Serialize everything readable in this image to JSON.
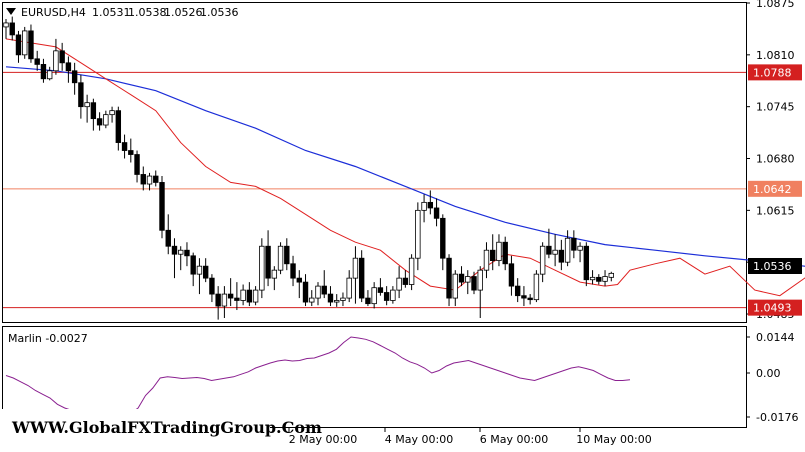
{
  "chart_data": {
    "type": "candlestick",
    "symbol_label": "EURUSD,H4",
    "ohlc_header": [
      "1.0531",
      "1.0538",
      "1.0526",
      "1.0536"
    ],
    "price_axis": {
      "min": 1.0475,
      "max": 1.0875,
      "ticks": [
        "1.0875",
        "1.0810",
        "1.0745",
        "1.0680",
        "1.0615",
        "1.0550",
        "1.0485"
      ]
    },
    "time_labels": [
      "2 May 00:00",
      "4 May 00:00",
      "6 May 00:00",
      "10 May 00:00"
    ],
    "levels": [
      {
        "value": 1.0788,
        "label": "1.0788",
        "color": "#d42020"
      },
      {
        "value": 1.0642,
        "label": "1.0642",
        "color": "#f08060"
      },
      {
        "value": 1.0493,
        "label": "1.0493",
        "color": "#d42020"
      }
    ],
    "current_price": "1.0536",
    "candles": [
      [
        1.0845,
        1.0855,
        1.083,
        1.085
      ],
      [
        1.085,
        1.0858,
        1.0828,
        1.0835
      ],
      [
        1.0835,
        1.084,
        1.08,
        1.081
      ],
      [
        1.081,
        1.0845,
        1.0805,
        1.084
      ],
      [
        1.084,
        1.0848,
        1.08,
        1.0805
      ],
      [
        1.0805,
        1.0815,
        1.079,
        1.0798
      ],
      [
        1.0798,
        1.0805,
        1.0775,
        1.078
      ],
      [
        1.078,
        1.0795,
        1.0778,
        1.079
      ],
      [
        1.079,
        1.083,
        1.0785,
        1.0815
      ],
      [
        1.0815,
        1.0825,
        1.079,
        1.08
      ],
      [
        1.08,
        1.0808,
        1.0775,
        1.079
      ],
      [
        1.079,
        1.08,
        1.076,
        1.0775
      ],
      [
        1.0775,
        1.0785,
        1.073,
        1.0745
      ],
      [
        1.0745,
        1.076,
        1.0725,
        1.075
      ],
      [
        1.075,
        1.0755,
        1.0715,
        1.073
      ],
      [
        1.073,
        1.0738,
        1.0715,
        1.0722
      ],
      [
        1.0722,
        1.074,
        1.0718,
        1.0735
      ],
      [
        1.0735,
        1.0745,
        1.0725,
        1.074
      ],
      [
        1.074,
        1.0745,
        1.069,
        1.07
      ],
      [
        1.07,
        1.071,
        1.068,
        1.069
      ],
      [
        1.069,
        1.0705,
        1.0675,
        1.0685
      ],
      [
        1.0685,
        1.069,
        1.065,
        1.066
      ],
      [
        1.066,
        1.067,
        1.064,
        1.0648
      ],
      [
        1.0648,
        1.0662,
        1.064,
        1.0658
      ],
      [
        1.0658,
        1.0665,
        1.0645,
        1.065
      ],
      [
        1.065,
        1.0658,
        1.058,
        1.059
      ],
      [
        1.059,
        1.061,
        1.056,
        1.057
      ],
      [
        1.057,
        1.058,
        1.053,
        1.056
      ],
      [
        1.056,
        1.057,
        1.054,
        1.0565
      ],
      [
        1.0565,
        1.0575,
        1.0545,
        1.0558
      ],
      [
        1.0558,
        1.0562,
        1.052,
        1.0535
      ],
      [
        1.0535,
        1.0555,
        1.051,
        1.0545
      ],
      [
        1.0545,
        1.0555,
        1.0525,
        1.053
      ],
      [
        1.053,
        1.0535,
        1.05,
        1.051
      ],
      [
        1.051,
        1.052,
        1.0478,
        1.0495
      ],
      [
        1.0495,
        1.052,
        1.048,
        1.051
      ],
      [
        1.051,
        1.053,
        1.0495,
        1.0505
      ],
      [
        1.0505,
        1.0525,
        1.049,
        1.0502
      ],
      [
        1.0502,
        1.0522,
        1.0496,
        1.0515
      ],
      [
        1.0515,
        1.0525,
        1.0495,
        1.05
      ],
      [
        1.05,
        1.052,
        1.0496,
        1.0515
      ],
      [
        1.0515,
        1.058,
        1.0505,
        1.057
      ],
      [
        1.057,
        1.059,
        1.052,
        1.053
      ],
      [
        1.053,
        1.0545,
        1.0515,
        1.054
      ],
      [
        1.054,
        1.0575,
        1.0535,
        1.057
      ],
      [
        1.057,
        1.058,
        1.054,
        1.0548
      ],
      [
        1.0548,
        1.0558,
        1.052,
        1.053
      ],
      [
        1.053,
        1.054,
        1.0505,
        1.0525
      ],
      [
        1.0525,
        1.0535,
        1.0495,
        1.05
      ],
      [
        1.05,
        1.0515,
        1.0495,
        1.0505
      ],
      [
        1.0505,
        1.0525,
        1.0496,
        1.052
      ],
      [
        1.052,
        1.054,
        1.0505,
        1.051
      ],
      [
        1.051,
        1.052,
        1.0495,
        1.05
      ],
      [
        1.05,
        1.051,
        1.0494,
        1.0502
      ],
      [
        1.0502,
        1.0512,
        1.0495,
        1.0505
      ],
      [
        1.0505,
        1.054,
        1.05,
        1.053
      ],
      [
        1.053,
        1.057,
        1.0498,
        1.0555
      ],
      [
        1.0555,
        1.0565,
        1.05,
        1.0505
      ],
      [
        1.0505,
        1.0515,
        1.0495,
        1.0498
      ],
      [
        1.0498,
        1.0525,
        1.0492,
        1.0518
      ],
      [
        1.0518,
        1.053,
        1.0508,
        1.0512
      ],
      [
        1.0512,
        1.052,
        1.0496,
        1.0502
      ],
      [
        1.0502,
        1.052,
        1.0498,
        1.0515
      ],
      [
        1.0515,
        1.0545,
        1.0505,
        1.053
      ],
      [
        1.053,
        1.054,
        1.0518,
        1.0522
      ],
      [
        1.0522,
        1.056,
        1.0515,
        1.0555
      ],
      [
        1.0555,
        1.0625,
        1.054,
        1.0615
      ],
      [
        1.0615,
        1.0635,
        1.06,
        1.0625
      ],
      [
        1.0625,
        1.064,
        1.061,
        1.0618
      ],
      [
        1.0618,
        1.063,
        1.0595,
        1.0605
      ],
      [
        1.0605,
        1.061,
        1.054,
        1.0555
      ],
      [
        1.0555,
        1.056,
        1.0495,
        1.0505
      ],
      [
        1.0505,
        1.054,
        1.0495,
        1.0535
      ],
      [
        1.0535,
        1.0545,
        1.052,
        1.0525
      ],
      [
        1.0525,
        1.054,
        1.051,
        1.0532
      ],
      [
        1.0532,
        1.0538,
        1.051,
        1.0515
      ],
      [
        1.0515,
        1.0545,
        1.048,
        1.054
      ],
      [
        1.054,
        1.0575,
        1.053,
        1.0565
      ],
      [
        1.0565,
        1.0585,
        1.054,
        1.0552
      ],
      [
        1.0552,
        1.0585,
        1.0545,
        1.0575
      ],
      [
        1.0575,
        1.0582,
        1.054,
        1.0548
      ],
      [
        1.0548,
        1.0558,
        1.0508,
        1.052
      ],
      [
        1.052,
        1.053,
        1.05,
        1.0508
      ],
      [
        1.0508,
        1.052,
        1.0495,
        1.0505
      ],
      [
        1.0505,
        1.051,
        1.0497,
        1.0503
      ],
      [
        1.0503,
        1.054,
        1.05,
        1.0535
      ],
      [
        1.0535,
        1.0575,
        1.0525,
        1.057
      ],
      [
        1.057,
        1.0592,
        1.0555,
        1.056
      ],
      [
        1.056,
        1.0585,
        1.0545,
        1.0565
      ],
      [
        1.0565,
        1.0578,
        1.054,
        1.055
      ],
      [
        1.055,
        1.059,
        1.0545,
        1.058
      ],
      [
        1.058,
        1.059,
        1.0555,
        1.0565
      ],
      [
        1.0565,
        1.0575,
        1.055,
        1.057
      ],
      [
        1.057,
        1.0575,
        1.052,
        1.0528
      ],
      [
        1.0528,
        1.054,
        1.0522,
        1.0531
      ],
      [
        1.0531,
        1.0535,
        1.0522,
        1.0526
      ],
      [
        1.0526,
        1.054,
        1.052,
        1.0532
      ],
      [
        1.0531,
        1.0538,
        1.0526,
        1.0536
      ]
    ],
    "ma_fast": [
      [
        0,
        1.083
      ],
      [
        4,
        1.0825
      ],
      [
        8,
        1.082
      ],
      [
        12,
        1.08
      ],
      [
        16,
        1.078
      ],
      [
        20,
        1.076
      ],
      [
        24,
        1.074
      ],
      [
        28,
        1.07
      ],
      [
        32,
        1.067
      ],
      [
        36,
        1.065
      ],
      [
        40,
        1.0645
      ],
      [
        44,
        1.063
      ],
      [
        48,
        1.061
      ],
      [
        52,
        1.059
      ],
      [
        56,
        1.0575
      ],
      [
        60,
        1.0565
      ],
      [
        64,
        1.054
      ],
      [
        68,
        1.052
      ],
      [
        72,
        1.0515
      ],
      [
        76,
        1.054
      ],
      [
        80,
        1.056
      ],
      [
        84,
        1.0555
      ],
      [
        88,
        1.054
      ],
      [
        92,
        1.0525
      ],
      [
        96,
        1.052
      ],
      [
        98,
        1.0522
      ],
      [
        100,
        1.054
      ],
      [
        104,
        1.0548
      ],
      [
        108,
        1.0555
      ],
      [
        112,
        1.0535
      ],
      [
        116,
        1.0545
      ],
      [
        120,
        1.0515
      ],
      [
        124,
        1.0508
      ],
      [
        128,
        1.053
      ],
      [
        132,
        1.0555
      ],
      [
        136,
        1.056
      ],
      [
        140,
        1.0545
      ],
      [
        144,
        1.0533
      ],
      [
        148,
        1.053
      ]
    ],
    "ma_slow": [
      [
        0,
        1.0795
      ],
      [
        8,
        1.079
      ],
      [
        16,
        1.078
      ],
      [
        24,
        1.0765
      ],
      [
        32,
        1.074
      ],
      [
        40,
        1.0718
      ],
      [
        48,
        1.069
      ],
      [
        56,
        1.067
      ],
      [
        64,
        1.0645
      ],
      [
        72,
        1.062
      ],
      [
        80,
        1.06
      ],
      [
        88,
        1.0585
      ],
      [
        96,
        1.0572
      ],
      [
        104,
        1.0565
      ],
      [
        112,
        1.0558
      ],
      [
        120,
        1.0552
      ],
      [
        128,
        1.0545
      ],
      [
        136,
        1.054
      ],
      [
        142,
        1.0536
      ],
      [
        148,
        1.0534
      ]
    ],
    "indicator": {
      "label": "Marlin -0.0027",
      "ticks": [
        "0.0144",
        "0.00",
        "-0.0176"
      ],
      "min": -0.0176,
      "max": 0.0144,
      "values": [
        -0.001,
        -0.002,
        -0.0035,
        -0.005,
        -0.007,
        -0.0085,
        -0.01,
        -0.0125,
        -0.014,
        -0.015,
        -0.016,
        -0.0165,
        -0.017,
        -0.0172,
        -0.0176,
        -0.017,
        -0.0168,
        -0.016,
        -0.014,
        -0.009,
        -0.006,
        -0.002,
        -0.0015,
        -0.0018,
        -0.0022,
        -0.002,
        -0.0018,
        -0.0022,
        -0.003,
        -0.0025,
        -0.002,
        -0.0015,
        -0.0005,
        0.0005,
        0.002,
        0.003,
        0.004,
        0.0048,
        0.0052,
        0.0048,
        0.005,
        0.0058,
        0.006,
        0.007,
        0.008,
        0.0095,
        0.0122,
        0.0144,
        0.014,
        0.0135,
        0.0125,
        0.011,
        0.0095,
        0.008,
        0.006,
        0.0045,
        0.0035,
        0.002,
        0.0,
        0.001,
        0.0028,
        0.004,
        0.0045,
        0.005,
        0.004,
        0.003,
        0.002,
        0.001,
        0.0,
        -0.001,
        -0.002,
        -0.0025,
        -0.003,
        -0.002,
        -0.001,
        0.0,
        0.001,
        0.002,
        0.0025,
        0.0018,
        0.001,
        -0.0005,
        -0.002,
        -0.003,
        -0.003,
        -0.0027
      ]
    }
  },
  "watermark": "WWW.GlobalFXTradingGroup.Com",
  "colors": {
    "ma_fast": "#e02020",
    "ma_slow": "#1c2ed8",
    "indicator": "#8a2090",
    "level_strong": "#d42020",
    "level_soft": "#f08060",
    "chart_bg": "#ffffff"
  }
}
